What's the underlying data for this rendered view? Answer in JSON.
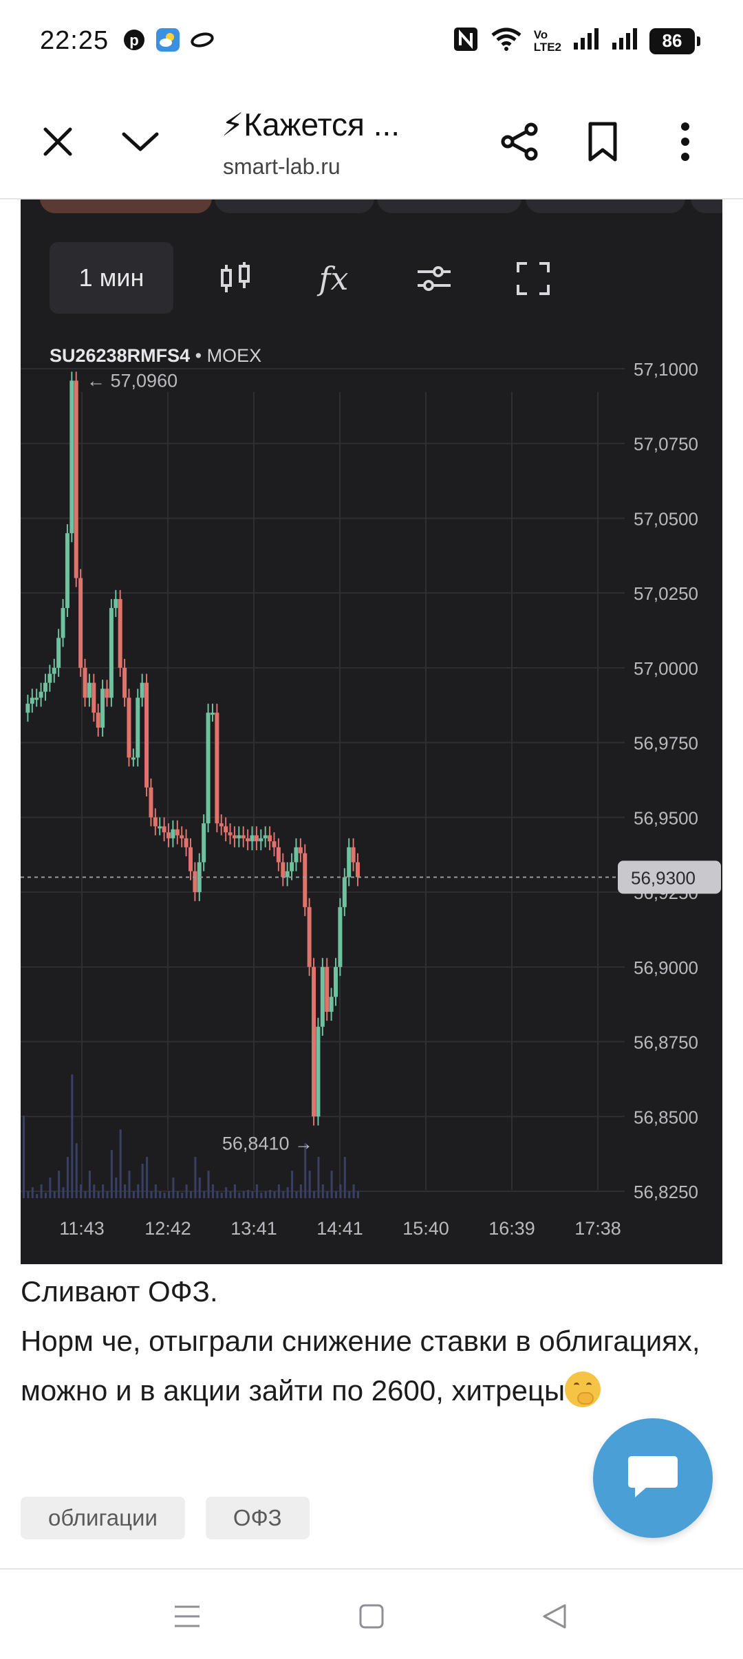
{
  "status_bar": {
    "time": "22:25",
    "left_icons": [
      "pinterest-icon",
      "weather-icon",
      "link-icon"
    ],
    "right_icons": [
      "nfc-icon",
      "wifi-icon",
      "volte-icon",
      "signal-icon",
      "signal-icon"
    ],
    "network_top": "Vo",
    "network_bottom": "LTE2",
    "battery": "86"
  },
  "top_bar": {
    "title": "⚡Кажется ...",
    "url": "smart-lab.ru",
    "icons": [
      "close-icon",
      "chevron-down-icon",
      "share-icon",
      "bookmark-icon",
      "more-vert-icon"
    ]
  },
  "chart_toolbar": {
    "interval": "1 мин",
    "tools": [
      "candles-icon",
      "indicators-icon",
      "settings-sliders-icon",
      "fullscreen-icon"
    ],
    "fx_label": "fx"
  },
  "chart_data": {
    "type": "candlestick",
    "symbol": "SU26238RMFS4",
    "exchange": "MOEX",
    "x_ticks": [
      "11:43",
      "12:42",
      "13:41",
      "14:41",
      "15:40",
      "16:39",
      "17:38"
    ],
    "y_ticks": [
      "57,1000",
      "57,0750",
      "57,0500",
      "57,0250",
      "57,0000",
      "56,9750",
      "56,9500",
      "56,9250",
      "56,9000",
      "56,8750",
      "56,8500",
      "56,8250"
    ],
    "ylim": [
      56.825,
      57.1
    ],
    "current_price": 56.93,
    "current_price_label": "56,9300",
    "high_label": "57,0960",
    "low_label": "56,8410",
    "high": 57.096,
    "low": 56.841,
    "grid": true,
    "colors": {
      "up": "#6fc2a0",
      "down": "#e0736c",
      "volume": "#3a3f66",
      "background": "#1d1d20",
      "grid": "#2f2f33"
    },
    "price_path": [
      56.985,
      56.988,
      56.99,
      56.99,
      56.992,
      56.995,
      56.998,
      57.0,
      57.01,
      57.02,
      57.045,
      57.096,
      57.03,
      57.0,
      56.99,
      56.995,
      56.985,
      56.98,
      56.993,
      56.99,
      57.02,
      57.023,
      57.0,
      56.99,
      56.97,
      56.97,
      56.99,
      56.995,
      56.96,
      56.95,
      56.947,
      56.947,
      56.945,
      56.943,
      56.946,
      56.944,
      56.943,
      56.94,
      56.932,
      56.925,
      56.935,
      56.948,
      56.985,
      56.985,
      56.948,
      56.947,
      56.945,
      56.944,
      56.943,
      56.944,
      56.943,
      56.942,
      56.944,
      56.942,
      56.943,
      56.944,
      56.942,
      56.94,
      56.935,
      56.93,
      56.932,
      56.935,
      56.94,
      56.938,
      56.92,
      56.9,
      56.85,
      56.88,
      56.9,
      56.885,
      56.89,
      56.9,
      56.92,
      56.93,
      56.94,
      56.935,
      56.93
    ],
    "volumes": [
      0.6,
      0.05,
      0.08,
      0.03,
      0.1,
      0.04,
      0.15,
      0.05,
      0.2,
      0.08,
      0.3,
      0.9,
      0.4,
      0.1,
      0.05,
      0.2,
      0.1,
      0.05,
      0.1,
      0.05,
      0.35,
      0.15,
      0.5,
      0.1,
      0.2,
      0.05,
      0.1,
      0.25,
      0.3,
      0.05,
      0.1,
      0.05,
      0.04,
      0.05,
      0.15,
      0.05,
      0.04,
      0.1,
      0.05,
      0.3,
      0.15,
      0.05,
      0.2,
      0.1,
      0.05,
      0.04,
      0.08,
      0.05,
      0.1,
      0.04,
      0.05,
      0.06,
      0.05,
      0.1,
      0.04,
      0.05,
      0.06,
      0.05,
      0.1,
      0.05,
      0.08,
      0.2,
      0.05,
      0.1,
      0.4,
      0.2,
      0.05,
      0.3,
      0.1,
      0.05,
      0.2,
      0.05,
      0.1,
      0.3,
      0.05,
      0.1,
      0.05
    ]
  },
  "post": {
    "line1": "Сливают ОФЗ.",
    "line2": "Норм че, отыграли снижение ставки в облигациях, можно и в акции зайти по 2600, хитрецы",
    "emoji": "hand-over-mouth-emoji"
  },
  "tags": [
    "облигации",
    "ОФЗ"
  ],
  "fab": {
    "icon": "chat-icon"
  },
  "nav_bar": {
    "icons": [
      "menu-icon",
      "home-square-icon",
      "back-triangle-icon"
    ]
  }
}
